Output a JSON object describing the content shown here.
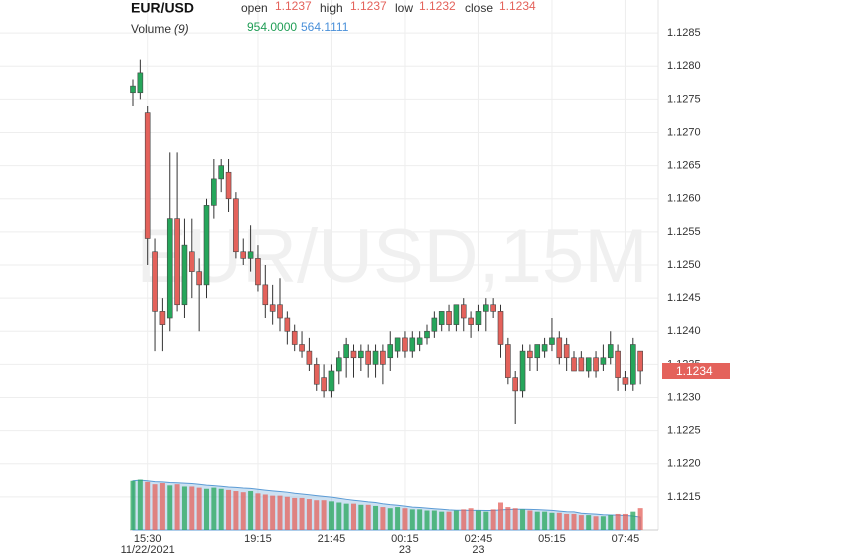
{
  "chart_data": {
    "type": "candlestick",
    "title": "EUR/USD",
    "watermark": "EUR/USD,15M",
    "legend_labels": {
      "open": "open",
      "high": "high",
      "low": "low",
      "close": "close"
    },
    "categories": [
      null,
      null,
      "15:30",
      null,
      null,
      null,
      null,
      null,
      null,
      null,
      null,
      null,
      null,
      null,
      null,
      null,
      null,
      "19:15",
      null,
      null,
      null,
      null,
      null,
      null,
      null,
      null,
      null,
      "21:45",
      null,
      null,
      null,
      null,
      null,
      null,
      null,
      null,
      null,
      "00:15",
      null,
      null,
      null,
      null,
      null,
      null,
      null,
      null,
      null,
      "02:45",
      null,
      null,
      null,
      null,
      null,
      null,
      null,
      null,
      null,
      "05:15",
      null,
      null,
      null,
      null,
      null,
      null,
      null,
      null,
      null,
      "07:45",
      null,
      null
    ],
    "category_dates": [
      null,
      null,
      "11/22/2021",
      null,
      null,
      null,
      null,
      null,
      null,
      null,
      null,
      null,
      null,
      null,
      null,
      null,
      null,
      null,
      null,
      null,
      null,
      null,
      null,
      null,
      null,
      null,
      null,
      null,
      null,
      null,
      null,
      null,
      null,
      null,
      null,
      null,
      null,
      "23",
      null,
      null,
      null,
      null,
      null,
      null,
      null,
      null,
      null,
      "23",
      null,
      null,
      null,
      null,
      null,
      null,
      null,
      null,
      null,
      null,
      null,
      null,
      null,
      null,
      null,
      null,
      null,
      null,
      null,
      null,
      null,
      null
    ],
    "open": [
      1.1276,
      1.1276,
      1.1273,
      1.1252,
      1.1243,
      1.1242,
      1.1257,
      1.1244,
      1.1252,
      1.1249,
      1.1247,
      1.1259,
      1.1263,
      1.1264,
      1.126,
      1.1252,
      1.1251,
      1.1251,
      1.1247,
      1.1244,
      1.1244,
      1.1242,
      1.124,
      1.1238,
      1.1237,
      1.1235,
      1.1233,
      1.1231,
      1.1234,
      1.1236,
      1.1237,
      1.1236,
      1.1237,
      1.1235,
      1.1237,
      1.1236,
      1.1237,
      1.1239,
      1.1237,
      1.1238,
      1.1239,
      1.124,
      1.1241,
      1.1243,
      1.1241,
      1.1244,
      1.1242,
      1.1241,
      1.1243,
      1.1244,
      1.1243,
      1.1238,
      1.1233,
      1.1231,
      1.1237,
      1.1236,
      1.1237,
      1.1238,
      1.1239,
      1.1238,
      1.1236,
      1.1236,
      1.1234,
      1.1236,
      1.1235,
      1.1236,
      1.1237,
      1.1233,
      1.1232,
      1.1237
    ],
    "high": [
      1.1278,
      1.1281,
      1.1274,
      1.1254,
      1.1245,
      1.1267,
      1.1267,
      1.1257,
      1.1257,
      1.1251,
      1.126,
      1.1266,
      1.1266,
      1.1266,
      1.1261,
      1.1254,
      1.1256,
      1.1253,
      1.125,
      1.1247,
      1.1248,
      1.1243,
      1.1241,
      1.124,
      1.1239,
      1.1236,
      1.1235,
      1.1235,
      1.1237,
      1.1239,
      1.1238,
      1.1238,
      1.1238,
      1.1238,
      1.1238,
      1.124,
      1.1239,
      1.124,
      1.124,
      1.124,
      1.1241,
      1.1243,
      1.1243,
      1.1244,
      1.1244,
      1.1245,
      1.1243,
      1.1244,
      1.1245,
      1.1245,
      1.1244,
      1.1239,
      1.1234,
      1.1238,
      1.1238,
      1.1238,
      1.1239,
      1.1242,
      1.124,
      1.1239,
      1.1237,
      1.1237,
      1.1236,
      1.1237,
      1.1238,
      1.124,
      1.1238,
      1.1234,
      1.1239,
      1.1237
    ],
    "low": [
      1.1274,
      1.1275,
      1.125,
      1.1237,
      1.1237,
      1.124,
      1.1243,
      1.1242,
      1.1245,
      1.124,
      1.1245,
      1.1257,
      1.1261,
      1.1258,
      1.1251,
      1.125,
      1.1249,
      1.1246,
      1.1242,
      1.1241,
      1.124,
      1.1238,
      1.1237,
      1.1236,
      1.1234,
      1.1231,
      1.123,
      1.123,
      1.1232,
      1.1233,
      1.1233,
      1.1234,
      1.1233,
      1.1233,
      1.1232,
      1.1234,
      1.1236,
      1.1236,
      1.1236,
      1.1237,
      1.1238,
      1.1239,
      1.124,
      1.124,
      1.124,
      1.124,
      1.1239,
      1.124,
      1.124,
      1.1242,
      1.1236,
      1.1232,
      1.1226,
      1.123,
      1.1234,
      1.1234,
      1.1236,
      1.1237,
      1.1235,
      1.1234,
      1.1234,
      1.1234,
      1.1233,
      1.1233,
      1.1234,
      1.1235,
      1.1231,
      1.1231,
      1.1231,
      1.1232
    ],
    "close": [
      1.1277,
      1.1279,
      1.1254,
      1.1243,
      1.1241,
      1.1257,
      1.1244,
      1.1253,
      1.1249,
      1.1247,
      1.1259,
      1.1263,
      1.1265,
      1.126,
      1.1252,
      1.1251,
      1.1252,
      1.1247,
      1.1244,
      1.1243,
      1.1242,
      1.124,
      1.1238,
      1.1237,
      1.1235,
      1.1232,
      1.1231,
      1.1234,
      1.1236,
      1.1238,
      1.1236,
      1.1237,
      1.1235,
      1.1237,
      1.1235,
      1.1238,
      1.1239,
      1.1237,
      1.1239,
      1.1239,
      1.124,
      1.1242,
      1.1243,
      1.1241,
      1.1244,
      1.1242,
      1.1241,
      1.1243,
      1.1244,
      1.1243,
      1.1238,
      1.1233,
      1.1231,
      1.1237,
      1.1236,
      1.1238,
      1.1238,
      1.1239,
      1.1236,
      1.1236,
      1.1234,
      1.1234,
      1.1236,
      1.1234,
      1.1236,
      1.1238,
      1.1233,
      1.1232,
      1.1238,
      1.1234
    ],
    "up_color": "#26a65b",
    "down_color": "#e4625b",
    "ylim": [
      1.121,
      1.129
    ],
    "yticks": [
      1.1215,
      {
        "value": 1.122,
        "label": "1.1220"
      },
      1.1225,
      {
        "value": 1.123,
        "label": "1.1230"
      },
      1.1235,
      {
        "value": 1.124,
        "label": "1.1240"
      },
      1.1245,
      {
        "value": 1.125,
        "label": "1.1250"
      },
      1.1255,
      {
        "value": 1.126,
        "label": "1.1260"
      },
      1.1265,
      {
        "value": 1.127,
        "label": "1.1270"
      },
      1.1275,
      {
        "value": 1.128,
        "label": "1.1280"
      },
      1.1285
    ],
    "grid": true,
    "volume": {
      "name": "Volume",
      "period": "(9)",
      "values": [
        2150,
        2200,
        2100,
        2000,
        2050,
        1950,
        2000,
        1900,
        1900,
        1850,
        1800,
        1850,
        1800,
        1750,
        1700,
        1650,
        1700,
        1600,
        1550,
        1500,
        1500,
        1450,
        1400,
        1400,
        1350,
        1300,
        1300,
        1250,
        1200,
        1150,
        1150,
        1100,
        1100,
        1050,
        1000,
        950,
        1000,
        950,
        900,
        900,
        850,
        850,
        800,
        800,
        850,
        900,
        950,
        850,
        800,
        900,
        1200,
        1000,
        950,
        900,
        850,
        800,
        800,
        750,
        750,
        700,
        700,
        650,
        650,
        600,
        600,
        650,
        700,
        700,
        800,
        954
      ],
      "value_labels": [
        null,
        null,
        null,
        null,
        null,
        null,
        null,
        null,
        null,
        null,
        null,
        null,
        null,
        null,
        null,
        null,
        null,
        null,
        null,
        null,
        null,
        null,
        null,
        null,
        null,
        null,
        null,
        null,
        null,
        null,
        null,
        null,
        null,
        null,
        null,
        null,
        null,
        null,
        null,
        null,
        null,
        null,
        null,
        null,
        null,
        null,
        null,
        null,
        null,
        null,
        null,
        null,
        null,
        null,
        null,
        null,
        null,
        null,
        null,
        null,
        null,
        null,
        null,
        null,
        null,
        null,
        null,
        null,
        null,
        "954.0000"
      ],
      "ylim": [
        0,
        2400
      ]
    },
    "ma": {
      "color": "#5b9bd5",
      "values": [
        2150,
        2175,
        2150,
        2110,
        2100,
        2075,
        2064,
        2044,
        2028,
        1994,
        1956,
        1939,
        1911,
        1878,
        1861,
        1833,
        1817,
        1778,
        1739,
        1706,
        1678,
        1650,
        1606,
        1572,
        1539,
        1500,
        1467,
        1433,
        1383,
        1339,
        1300,
        1267,
        1228,
        1200,
        1144,
        1106,
        1078,
        1044,
        1000,
        983,
        956,
        928,
        906,
        878,
        861,
        861,
        856,
        856,
        850,
        850,
        878,
        894,
        906,
        906,
        900,
        889,
        872,
        856,
        822,
        794,
        789,
        733,
        711,
        694,
        667,
        656,
        650,
        635,
        610,
        564.1111
      ]
    }
  }
}
